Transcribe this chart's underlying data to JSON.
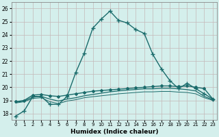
{
  "xlabel": "Humidex (Indice chaleur)",
  "ylabel": "",
  "xlim": [
    -0.5,
    23.5
  ],
  "ylim": [
    17.5,
    26.5
  ],
  "yticks": [
    18,
    19,
    20,
    21,
    22,
    23,
    24,
    25,
    26
  ],
  "xticks": [
    0,
    1,
    2,
    3,
    4,
    5,
    6,
    7,
    8,
    9,
    10,
    11,
    12,
    13,
    14,
    15,
    16,
    17,
    18,
    19,
    20,
    21,
    22,
    23
  ],
  "bg_color": "#d4efec",
  "grid_color_major": "#c4b8b8",
  "line_color": "#1a6b6b",
  "lines": [
    {
      "x": [
        0,
        1,
        2,
        3,
        4,
        5,
        6,
        7,
        8,
        9,
        10,
        11,
        12,
        13,
        14,
        15,
        16,
        17,
        18,
        19,
        20,
        21,
        22,
        23
      ],
      "y": [
        17.8,
        18.2,
        19.3,
        19.3,
        18.7,
        18.7,
        19.3,
        21.1,
        22.6,
        24.5,
        25.2,
        25.8,
        25.1,
        24.9,
        24.4,
        24.1,
        22.5,
        21.4,
        20.5,
        19.9,
        20.3,
        19.9,
        19.5,
        19.1
      ],
      "style": "-",
      "marker": "+",
      "markersize": 4,
      "linewidth": 1.0
    },
    {
      "x": [
        0,
        1,
        2,
        3,
        4,
        5,
        6,
        7,
        8,
        9,
        10,
        11,
        12,
        13,
        14,
        15,
        16,
        17,
        18,
        19,
        20,
        21,
        22,
        23
      ],
      "y": [
        18.9,
        19.0,
        19.4,
        19.45,
        19.35,
        19.3,
        19.4,
        19.5,
        19.6,
        19.7,
        19.75,
        19.8,
        19.85,
        19.9,
        19.95,
        20.0,
        20.05,
        20.1,
        20.1,
        20.05,
        20.1,
        20.0,
        19.9,
        19.1
      ],
      "style": "-",
      "marker": "D",
      "markersize": 2,
      "linewidth": 1.0
    },
    {
      "x": [
        0,
        1,
        2,
        3,
        4,
        5,
        6,
        7,
        8,
        9,
        10,
        11,
        12,
        13,
        14,
        15,
        16,
        17,
        18,
        19,
        20,
        21,
        22,
        23
      ],
      "y": [
        18.85,
        18.95,
        19.25,
        19.3,
        19.1,
        18.95,
        19.1,
        19.2,
        19.35,
        19.45,
        19.55,
        19.65,
        19.72,
        19.78,
        19.83,
        19.88,
        19.88,
        19.92,
        19.92,
        19.88,
        19.82,
        19.72,
        19.3,
        19.05
      ],
      "style": "-",
      "marker": null,
      "markersize": 0,
      "linewidth": 0.9
    },
    {
      "x": [
        0,
        1,
        2,
        3,
        4,
        5,
        6,
        7,
        8,
        9,
        10,
        11,
        12,
        13,
        14,
        15,
        16,
        17,
        18,
        19,
        20,
        21,
        22,
        23
      ],
      "y": [
        18.8,
        18.9,
        19.15,
        19.2,
        18.9,
        18.75,
        18.95,
        19.05,
        19.2,
        19.28,
        19.35,
        19.42,
        19.5,
        19.55,
        19.6,
        19.65,
        19.65,
        19.68,
        19.68,
        19.63,
        19.6,
        19.5,
        19.2,
        19.0
      ],
      "style": "-",
      "marker": null,
      "markersize": 0,
      "linewidth": 0.7
    }
  ]
}
